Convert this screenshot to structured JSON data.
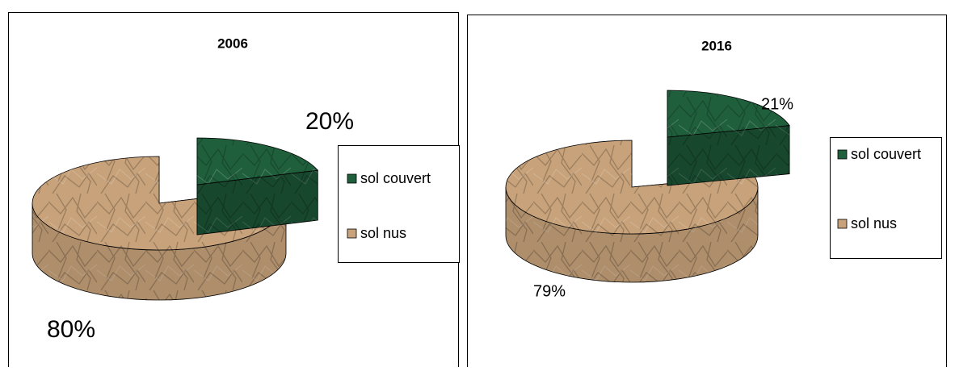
{
  "chart_data": [
    {
      "type": "pie",
      "title": "2006",
      "categories": [
        "sol couvert",
        "sol nus"
      ],
      "values": [
        20,
        80
      ],
      "value_labels": [
        "20%",
        "80%"
      ],
      "colors": [
        "#1f5f3c",
        "#c7a27a"
      ],
      "legend": "right"
    },
    {
      "type": "pie",
      "title": "2016",
      "categories": [
        "sol couvert",
        "sol nus"
      ],
      "values": [
        21,
        79
      ],
      "value_labels": [
        "21%",
        "79%"
      ],
      "colors": [
        "#1f5f3c",
        "#c7a27a"
      ],
      "legend": "right"
    }
  ]
}
